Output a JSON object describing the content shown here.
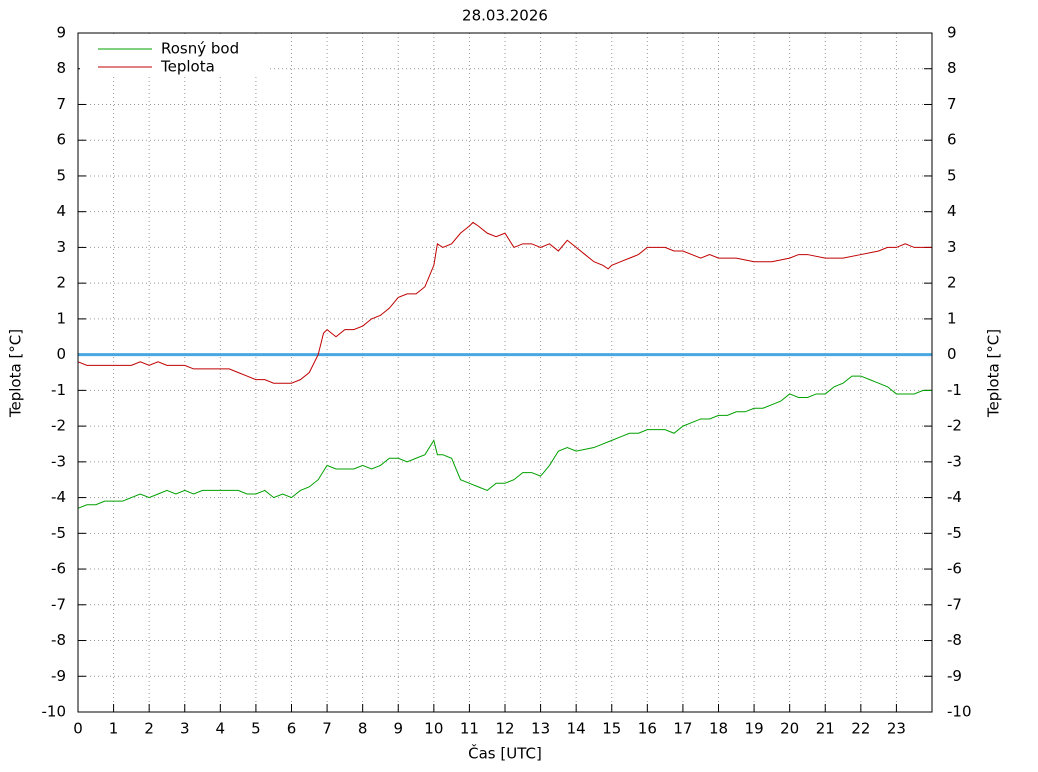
{
  "chart_data": {
    "type": "line",
    "title": "28.03.2026",
    "xlabel": "Čas [UTC]",
    "ylabel": "Teplota [°C]",
    "y2label": "Teplota [°C]",
    "xlim": [
      0,
      24
    ],
    "xticks": [
      0,
      1,
      2,
      3,
      4,
      5,
      6,
      7,
      8,
      9,
      10,
      11,
      12,
      13,
      14,
      15,
      16,
      17,
      18,
      19,
      20,
      21,
      22,
      23
    ],
    "ylim": [
      -10,
      9
    ],
    "yticks": [
      -10,
      -9,
      -8,
      -7,
      -6,
      -5,
      -4,
      -3,
      -2,
      -1,
      0,
      1,
      2,
      3,
      4,
      5,
      6,
      7,
      8,
      9
    ],
    "y2lim": [
      -10,
      9
    ],
    "y2ticks": [
      -10,
      -9,
      -8,
      -7,
      -6,
      -5,
      -4,
      -3,
      -2,
      -1,
      0,
      1,
      2,
      3,
      4,
      5,
      6,
      7,
      8,
      9
    ],
    "grid": true,
    "legend": "top-left",
    "hlines": [
      {
        "value": 0,
        "color": "#4aa8e0"
      }
    ],
    "series": [
      {
        "name": "Rosný bod",
        "color": "#00a000",
        "x": [
          0,
          0.25,
          0.5,
          0.75,
          1,
          1.25,
          1.5,
          1.75,
          2,
          2.25,
          2.5,
          2.75,
          3,
          3.25,
          3.5,
          4,
          4.5,
          4.75,
          5,
          5.25,
          5.5,
          5.75,
          6,
          6.25,
          6.5,
          6.75,
          7,
          7.25,
          7.5,
          7.75,
          8,
          8.25,
          8.5,
          8.75,
          9,
          9.25,
          9.5,
          9.75,
          10,
          10.1,
          10.25,
          10.5,
          10.75,
          11,
          11.25,
          11.5,
          11.75,
          12,
          12.25,
          12.5,
          12.75,
          13,
          13.25,
          13.5,
          13.75,
          14,
          14.5,
          15,
          15.25,
          15.5,
          15.75,
          16,
          16.25,
          16.5,
          16.75,
          17,
          17.25,
          17.5,
          17.75,
          18,
          18.25,
          18.5,
          18.75,
          19,
          19.25,
          19.5,
          19.75,
          20,
          20.25,
          20.5,
          20.75,
          21,
          21.25,
          21.5,
          21.75,
          22,
          22.25,
          22.5,
          22.75,
          23,
          23.5,
          23.75,
          24
        ],
        "values": [
          -4.3,
          -4.2,
          -4.2,
          -4.1,
          -4.1,
          -4.1,
          -4.0,
          -3.9,
          -4.0,
          -3.9,
          -3.8,
          -3.9,
          -3.8,
          -3.9,
          -3.8,
          -3.8,
          -3.8,
          -3.9,
          -3.9,
          -3.8,
          -4.0,
          -3.9,
          -4.0,
          -3.8,
          -3.7,
          -3.5,
          -3.1,
          -3.2,
          -3.2,
          -3.2,
          -3.1,
          -3.2,
          -3.1,
          -2.9,
          -2.9,
          -3.0,
          -2.9,
          -2.8,
          -2.4,
          -2.8,
          -2.8,
          -2.9,
          -3.5,
          -3.6,
          -3.7,
          -3.8,
          -3.6,
          -3.6,
          -3.5,
          -3.3,
          -3.3,
          -3.4,
          -3.1,
          -2.7,
          -2.6,
          -2.7,
          -2.6,
          -2.4,
          -2.3,
          -2.2,
          -2.2,
          -2.1,
          -2.1,
          -2.1,
          -2.2,
          -2.0,
          -1.9,
          -1.8,
          -1.8,
          -1.7,
          -1.7,
          -1.6,
          -1.6,
          -1.5,
          -1.5,
          -1.4,
          -1.3,
          -1.1,
          -1.2,
          -1.2,
          -1.1,
          -1.1,
          -0.9,
          -0.8,
          -0.6,
          -0.6,
          -0.7,
          -0.8,
          -0.9,
          -1.1,
          -1.1,
          -1.0,
          -1.0
        ]
      },
      {
        "name": "Teplota",
        "color": "#c00000",
        "x": [
          0,
          0.25,
          0.5,
          0.75,
          1,
          1.25,
          1.5,
          1.75,
          2,
          2.25,
          2.5,
          2.75,
          3,
          3.25,
          3.5,
          4,
          4.25,
          4.5,
          4.75,
          5,
          5.25,
          5.5,
          5.75,
          6,
          6.25,
          6.5,
          6.75,
          6.9,
          7,
          7.25,
          7.5,
          7.75,
          8,
          8.25,
          8.5,
          8.75,
          9,
          9.25,
          9.5,
          9.75,
          10,
          10.1,
          10.25,
          10.5,
          10.75,
          11,
          11.1,
          11.25,
          11.5,
          11.75,
          12,
          12.25,
          12.5,
          12.75,
          13,
          13.25,
          13.5,
          13.75,
          14,
          14.25,
          14.5,
          14.75,
          14.9,
          15,
          15.25,
          15.5,
          15.75,
          16,
          16.25,
          16.5,
          16.75,
          17,
          17.25,
          17.5,
          17.75,
          18,
          18.5,
          19,
          19.5,
          20,
          20.25,
          20.5,
          21,
          21.5,
          22,
          22.5,
          22.75,
          23,
          23.25,
          23.5,
          24
        ],
        "values": [
          -0.2,
          -0.3,
          -0.3,
          -0.3,
          -0.3,
          -0.3,
          -0.3,
          -0.2,
          -0.3,
          -0.2,
          -0.3,
          -0.3,
          -0.3,
          -0.4,
          -0.4,
          -0.4,
          -0.4,
          -0.5,
          -0.6,
          -0.7,
          -0.7,
          -0.8,
          -0.8,
          -0.8,
          -0.7,
          -0.5,
          0.0,
          0.6,
          0.7,
          0.5,
          0.7,
          0.7,
          0.8,
          1.0,
          1.1,
          1.3,
          1.6,
          1.7,
          1.7,
          1.9,
          2.5,
          3.1,
          3.0,
          3.1,
          3.4,
          3.6,
          3.7,
          3.6,
          3.4,
          3.3,
          3.4,
          3.0,
          3.1,
          3.1,
          3.0,
          3.1,
          2.9,
          3.2,
          3.0,
          2.8,
          2.6,
          2.5,
          2.4,
          2.5,
          2.6,
          2.7,
          2.8,
          3.0,
          3.0,
          3.0,
          2.9,
          2.9,
          2.8,
          2.7,
          2.8,
          2.7,
          2.7,
          2.6,
          2.6,
          2.7,
          2.8,
          2.8,
          2.7,
          2.7,
          2.8,
          2.9,
          3.0,
          3.0,
          3.1,
          3.0,
          3.0
        ]
      }
    ]
  }
}
